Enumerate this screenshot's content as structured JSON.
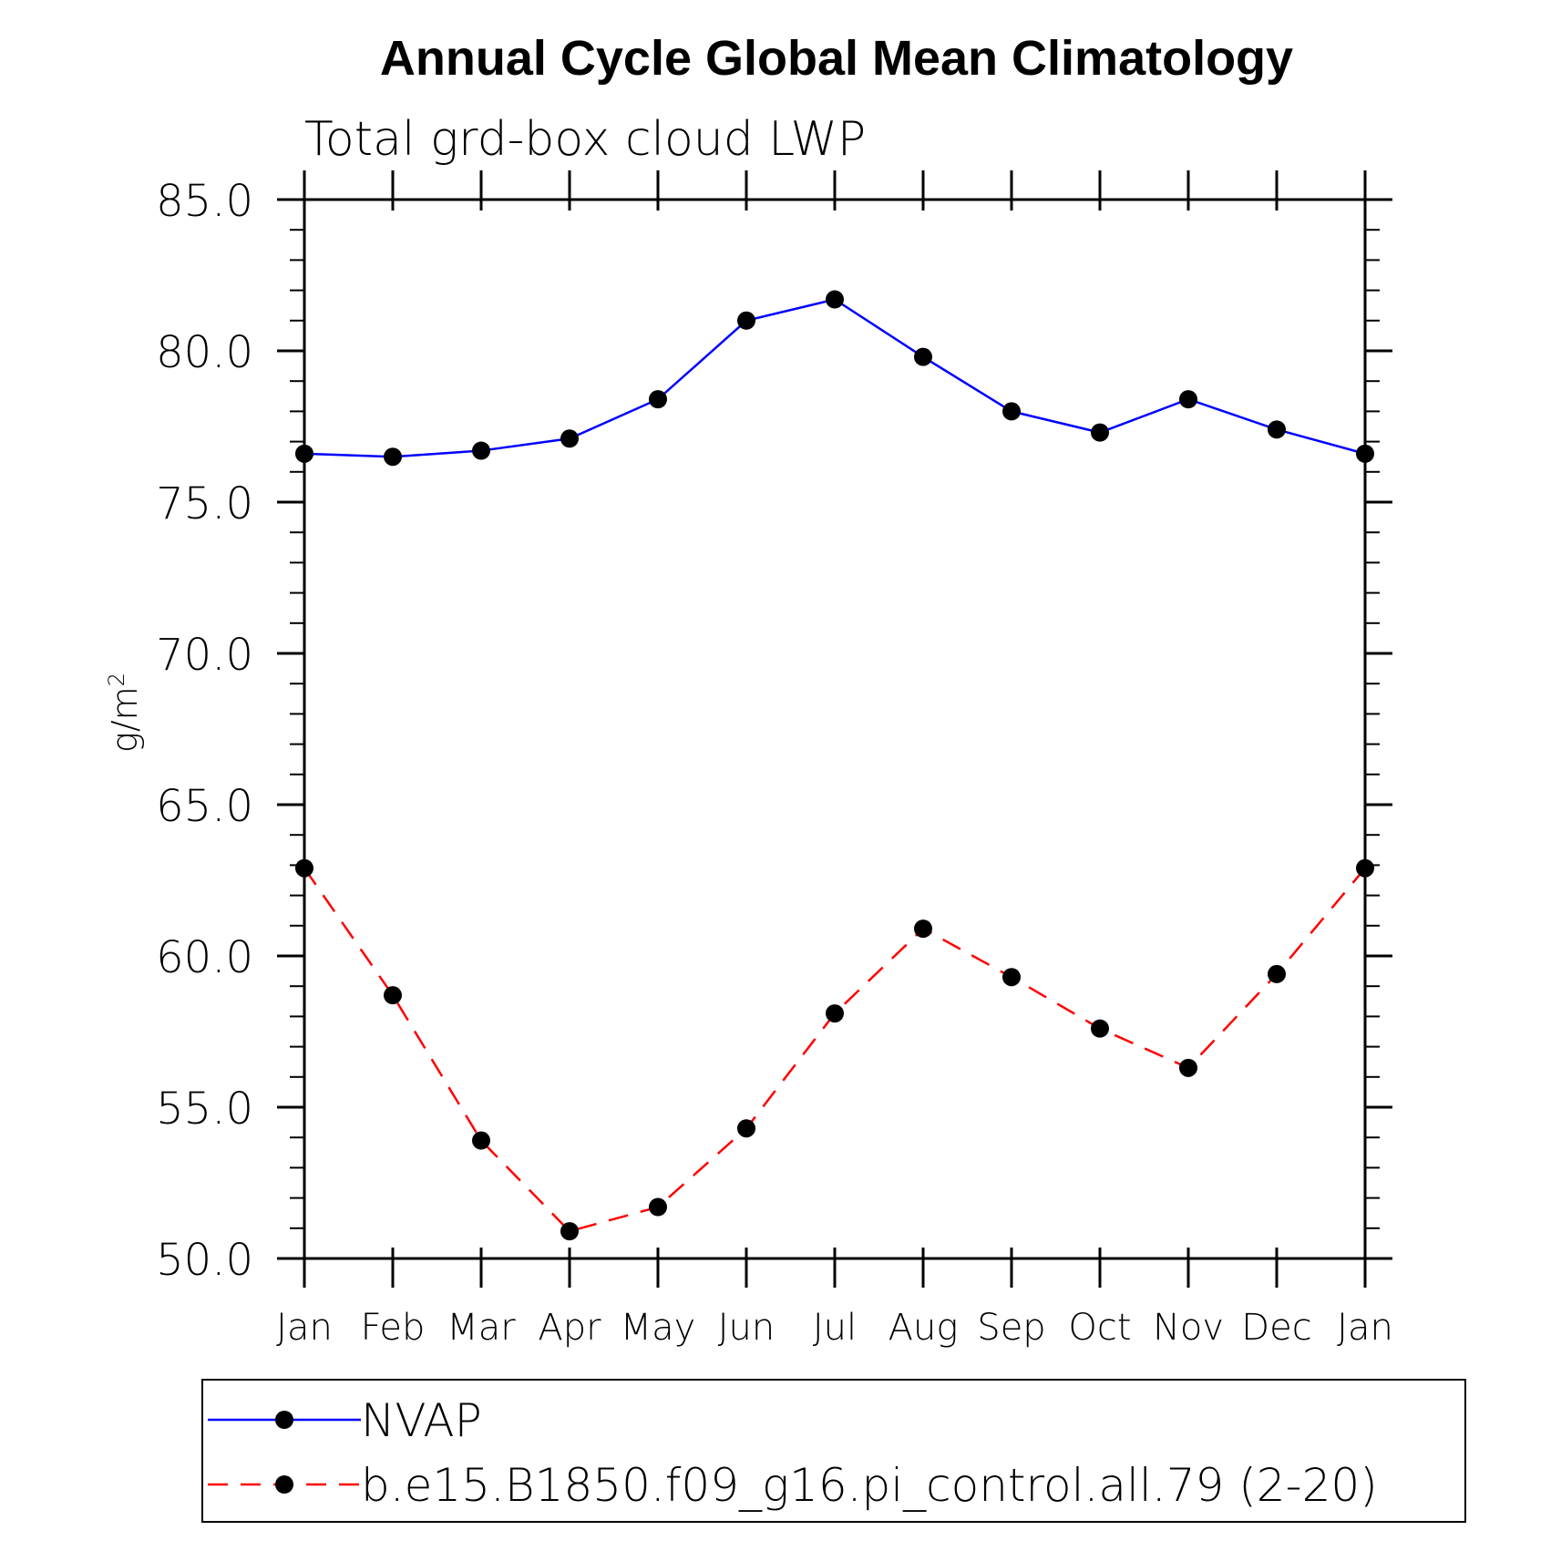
{
  "chart_data": {
    "type": "line",
    "title": "Annual Cycle Global Mean Climatology",
    "subtitle": "Total grd-box cloud LWP",
    "xlabel": "",
    "ylabel": "g/m",
    "ylabel_superscript": "2",
    "categories": [
      "Jan",
      "Feb",
      "Mar",
      "Apr",
      "May",
      "Jun",
      "Jul",
      "Aug",
      "Sep",
      "Oct",
      "Nov",
      "Dec",
      "Jan"
    ],
    "ylim": [
      50.0,
      85.0
    ],
    "yticks": [
      "50.0",
      "55.0",
      "60.0",
      "65.0",
      "70.0",
      "75.0",
      "80.0",
      "85.0"
    ],
    "ytick_values": [
      50,
      55,
      60,
      65,
      70,
      75,
      80,
      85
    ],
    "grid": false,
    "legend_position": "bottom",
    "series": [
      {
        "name": "NVAP",
        "color": "#0000ff",
        "style": "solid",
        "marker": "filled-circle",
        "values": [
          76.6,
          76.5,
          76.7,
          77.1,
          78.4,
          81.0,
          81.7,
          79.8,
          78.0,
          77.3,
          78.4,
          77.4,
          76.6
        ]
      },
      {
        "name": "b.e15.B1850.f09_g16.pi_control.all.79 (2-20)",
        "color": "#ff0000",
        "style": "dashed",
        "marker": "filled-circle",
        "values": [
          62.9,
          58.7,
          53.9,
          50.9,
          51.7,
          54.3,
          58.1,
          60.9,
          59.3,
          57.6,
          56.3,
          59.4,
          62.9
        ]
      }
    ]
  }
}
